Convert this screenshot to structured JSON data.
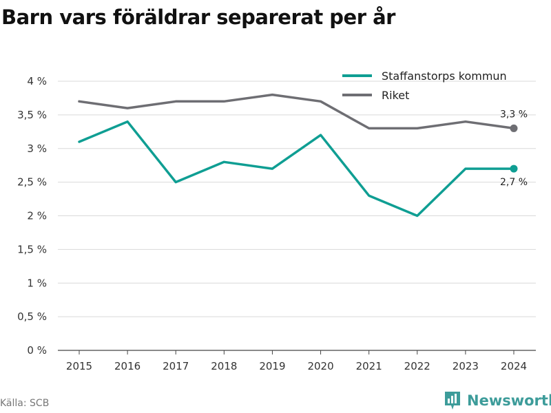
{
  "chart_data": {
    "type": "line",
    "title": "Barn vars föräldrar separerat per år",
    "x": [
      "2015",
      "2016",
      "2017",
      "2018",
      "2019",
      "2020",
      "2021",
      "2022",
      "2023",
      "2024"
    ],
    "series": [
      {
        "name": "Staffanstorps kommun",
        "color": "#0f9e93",
        "values": [
          3.1,
          3.4,
          2.5,
          2.8,
          2.7,
          3.2,
          2.3,
          2.0,
          2.7,
          2.7
        ],
        "end_label": "2,7 %"
      },
      {
        "name": "Riket",
        "color": "#6e6e73",
        "values": [
          3.7,
          3.6,
          3.7,
          3.7,
          3.8,
          3.7,
          3.3,
          3.3,
          3.4,
          3.3
        ],
        "end_label": "3,3 %"
      }
    ],
    "ylim": [
      0,
      4
    ],
    "yticks": [
      0,
      0.5,
      1,
      1.5,
      2,
      2.5,
      3,
      3.5,
      4
    ],
    "ytick_labels": [
      "0 %",
      "0,5 %",
      "1 %",
      "1,5 %",
      "2 %",
      "2,5 %",
      "3 %",
      "3,5 %",
      "4 %"
    ],
    "grid": true,
    "legend_position": "top-right"
  },
  "source": "Källa: SCB",
  "brand": {
    "name": "Newsworthy",
    "icon": "newsworthy-logo-icon",
    "color": "#3d9c9a"
  }
}
